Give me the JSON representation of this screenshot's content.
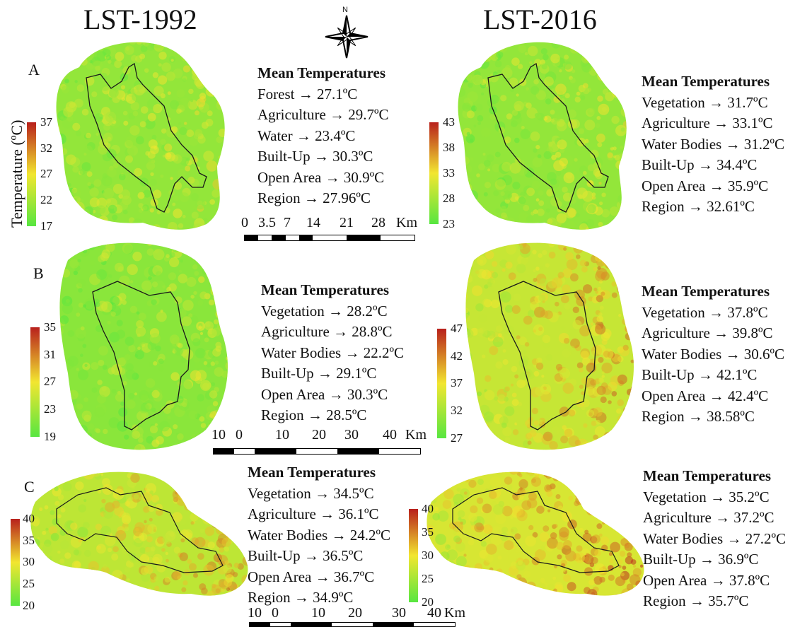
{
  "titles": {
    "left": "LST-1992",
    "right": "LST-2016"
  },
  "compass": {
    "north_label": "N"
  },
  "legend_axis_label": "Temperature (ºC)",
  "colors": {
    "low": "#57e640",
    "mid": "#f2e630",
    "high": "#b8201c",
    "boundary": "#1a1a1a"
  },
  "panels": [
    {
      "label": "A",
      "y1992": {
        "heading": "Mean Temperatures",
        "rows": [
          "Forest → 27.1ºC",
          "Agriculture → 29.7ºC",
          "Water → 23.4ºC",
          "Built-Up → 30.3ºC",
          "Open Area → 30.9ºC",
          "Region → 27.96ºC"
        ],
        "legend_ticks": [
          "37",
          "32",
          "27",
          "22",
          "17"
        ],
        "warmth": 0.35
      },
      "y2016": {
        "heading": "Mean Temperatures",
        "rows": [
          "Vegetation → 31.7ºC",
          "Agriculture → 33.1ºC",
          "Water Bodies → 31.2ºC",
          "Built-Up → 34.4ºC",
          "Open Area → 35.9ºC",
          "Region → 32.61ºC"
        ],
        "legend_ticks": [
          "43",
          "38",
          "33",
          "28",
          "23"
        ],
        "warmth": 0.35
      },
      "scalebar": {
        "labels": [
          "0",
          "3.5",
          "7",
          "14",
          "21",
          "28",
          "Km"
        ]
      }
    },
    {
      "label": "B",
      "y1992": {
        "heading": "Mean Temperatures",
        "rows": [
          "Vegetation → 28.2ºC",
          "Agriculture → 28.8ºC",
          "Water Bodies → 22.2ºC",
          "Built-Up → 29.1ºC",
          "Open Area → 30.3ºC",
          "Region → 28.5ºC"
        ],
        "legend_ticks": [
          "35",
          "31",
          "27",
          "23",
          "19"
        ],
        "warmth": 0.3
      },
      "y2016": {
        "heading": "Mean Temperatures",
        "rows": [
          "Vegetation → 37.8ºC",
          "Agriculture → 39.8ºC",
          "Water Bodies → 30.6ºC",
          "Built-Up → 42.1ºC",
          "Open Area → 42.4ºC",
          "Region → 38.58ºC"
        ],
        "legend_ticks": [
          "47",
          "42",
          "37",
          "32",
          "27"
        ],
        "warmth": 0.65
      },
      "scalebar": {
        "labels": [
          "10",
          "0",
          "10",
          "20",
          "30",
          "40",
          "Km"
        ]
      }
    },
    {
      "label": "C",
      "y1992": {
        "heading": "Mean Temperatures",
        "rows": [
          "Vegetation → 34.5ºC",
          "Agriculture → 36.1ºC",
          "Water Bodies → 24.2ºC",
          "Built-Up → 36.5ºC",
          "Open Area → 36.7ºC",
          "Region → 34.9ºC"
        ],
        "legend_ticks": [
          "40",
          "35",
          "30",
          "25",
          "20"
        ],
        "warmth": 0.6
      },
      "y2016": {
        "heading": "Mean Temperatures",
        "rows": [
          "Vegetation → 35.2ºC",
          "Agriculture → 37.2ºC",
          "Water Bodies → 27.2ºC",
          "Built-Up → 36.9ºC",
          "Open Area → 37.8ºC",
          "Region → 35.7ºC"
        ],
        "legend_ticks": [
          "40",
          "35",
          "30",
          "25",
          "20"
        ],
        "warmth": 0.75
      },
      "scalebar": {
        "labels": [
          "10",
          "0",
          "10",
          "20",
          "30",
          "40",
          "Km"
        ]
      }
    }
  ]
}
